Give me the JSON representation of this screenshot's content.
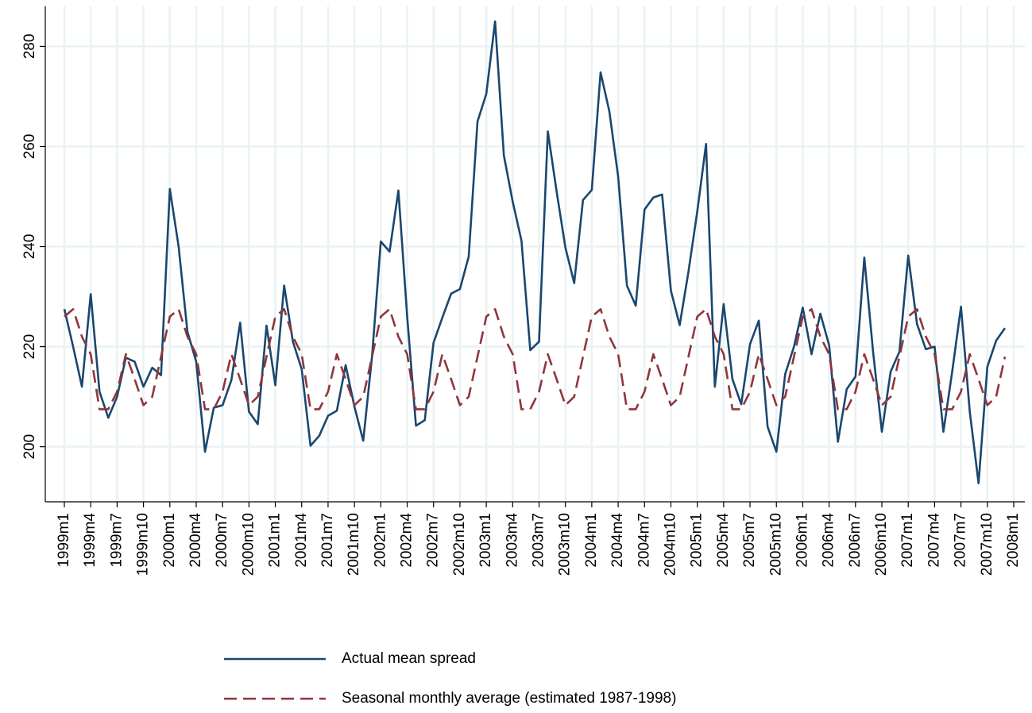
{
  "chart_data": {
    "type": "line",
    "categories": [
      "1999m1",
      null,
      null,
      "1999m4",
      null,
      null,
      "1999m7",
      null,
      null,
      "1999m10",
      null,
      null,
      "2000m1",
      null,
      null,
      "2000m4",
      null,
      null,
      "2000m7",
      null,
      null,
      "2000m10",
      null,
      null,
      "2001m1",
      null,
      null,
      "2001m4",
      null,
      null,
      "2001m7",
      null,
      null,
      "2001m10",
      null,
      null,
      "2002m1",
      null,
      null,
      "2002m4",
      null,
      null,
      "2002m7",
      null,
      null,
      "2002m10",
      null,
      null,
      "2003m1",
      null,
      null,
      "2003m4",
      null,
      null,
      "2003m7",
      null,
      null,
      "2003m10",
      null,
      null,
      "2004m1",
      null,
      null,
      "2004m4",
      null,
      null,
      "2004m7",
      null,
      null,
      "2004m10",
      null,
      null,
      "2005m1",
      null,
      null,
      "2005m4",
      null,
      null,
      "2005m7",
      null,
      null,
      "2005m10",
      null,
      null,
      "2006m1",
      null,
      null,
      "2006m4",
      null,
      null,
      "2006m7",
      null,
      null,
      "2006m10",
      null,
      null,
      "2007m1",
      null,
      null,
      "2007m4",
      null,
      null,
      "2007m7",
      null,
      null,
      "2007m10",
      null,
      null,
      "2008m1"
    ],
    "series": [
      {
        "name": "Actual mean spread",
        "color": "#1a476f",
        "dash": false,
        "values": [
          227.5,
          220,
          212,
          230.5,
          211,
          205.8,
          210,
          217.8,
          217,
          212,
          215.8,
          214.3,
          251.5,
          240,
          223,
          217,
          199,
          207.8,
          208.3,
          213.3,
          224.8,
          207,
          204.5,
          224.2,
          212.3,
          232.2,
          221,
          215.5,
          200.2,
          202.2,
          206.2,
          207.2,
          216.3,
          208,
          201.2,
          218,
          241,
          239,
          251.2,
          226,
          204.2,
          205.3,
          220.8,
          225.8,
          230.6,
          231.5,
          238,
          265,
          270.5,
          285,
          258.2,
          249,
          241.2,
          219.3,
          221,
          263,
          251,
          239.8,
          232.7,
          249.3,
          251.3,
          274.8,
          267,
          254,
          232.2,
          228.2,
          247.4,
          249.8,
          250.4,
          231.2,
          224.3,
          235,
          247,
          260.5,
          212,
          228.5,
          213.5,
          208.5,
          220.5,
          225.2,
          204,
          199,
          214.5,
          220,
          227.8,
          218.5,
          226.6,
          220.3,
          201,
          211.5,
          214,
          237.8,
          219,
          203,
          215,
          219,
          238.2,
          224.5,
          219.5,
          220,
          203,
          215,
          228,
          207,
          192.7,
          216,
          221.2,
          223.7,
          null
        ]
      },
      {
        "name": "Seasonal monthly average (estimated 1987-1998)",
        "color": "#90353b",
        "dash": true,
        "values": [
          226,
          227.5,
          222,
          218.5,
          207.5,
          207.5,
          211,
          218.5,
          213.5,
          208.3,
          210,
          218,
          226,
          227.5,
          222,
          218.5,
          207.5,
          207.5,
          211,
          218.5,
          213.5,
          208.3,
          210,
          218,
          226,
          227.5,
          222,
          218.5,
          207.5,
          207.5,
          211,
          218.5,
          213.5,
          208.3,
          210,
          218,
          226,
          227.5,
          222,
          218.5,
          207.5,
          207.5,
          211,
          218.5,
          213.5,
          208.3,
          210,
          218,
          226,
          227.5,
          222,
          218.5,
          207.5,
          207.5,
          211,
          218.5,
          213.5,
          208.3,
          210,
          218,
          226,
          227.5,
          222,
          218.5,
          207.5,
          207.5,
          211,
          218.5,
          213.5,
          208.3,
          210,
          218,
          226,
          227.5,
          222,
          218.5,
          207.5,
          207.5,
          211,
          218.5,
          213.5,
          208.3,
          210,
          218,
          226,
          227.5,
          222,
          218.5,
          207.5,
          207.5,
          211,
          218.5,
          213.5,
          208.3,
          210,
          218,
          226,
          227.5,
          222,
          218.5,
          207.5,
          207.5,
          211,
          218.5,
          213.5,
          208.3,
          210,
          218,
          null
        ]
      }
    ],
    "ylim": [
      189,
      288
    ],
    "yticks": [
      200,
      220,
      240,
      260,
      280
    ],
    "grid": true,
    "legend": "bottom"
  }
}
